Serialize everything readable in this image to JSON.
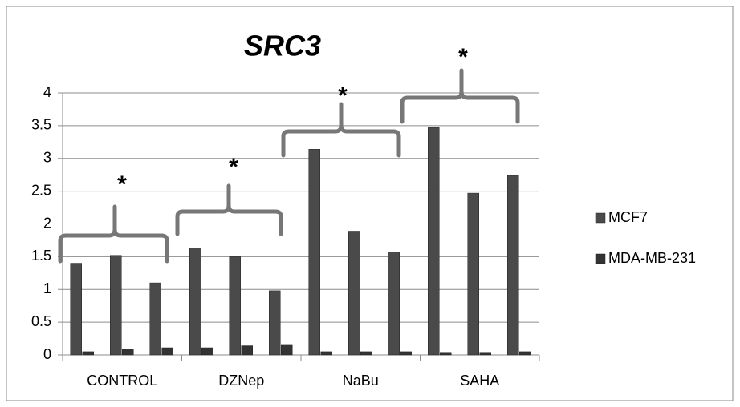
{
  "chart_data": {
    "type": "bar",
    "title": "SRC3",
    "categories": [
      null,
      "CONTROL",
      null,
      null,
      "DZNep",
      null,
      null,
      "NaBu",
      null,
      null,
      "SAHA",
      null
    ],
    "series": [
      {
        "name": "MCF7",
        "color": "#4a4a4a",
        "values": [
          1.4,
          1.52,
          1.1,
          1.63,
          1.5,
          0.98,
          3.14,
          1.89,
          1.57,
          3.47,
          2.47,
          2.74
        ]
      },
      {
        "name": "MDA-MB-231",
        "color": "#333333",
        "values": [
          0.05,
          0.09,
          0.11,
          0.11,
          0.14,
          0.16,
          0.05,
          0.05,
          0.05,
          0.04,
          0.04,
          0.05
        ]
      }
    ],
    "ylim": [
      0,
      4
    ],
    "yticks": [
      0,
      0.5,
      1,
      1.5,
      2,
      2.5,
      3,
      3.5,
      4
    ],
    "grid": true,
    "legend": "right",
    "annotations": [
      "*",
      "*",
      "*",
      "*"
    ]
  }
}
